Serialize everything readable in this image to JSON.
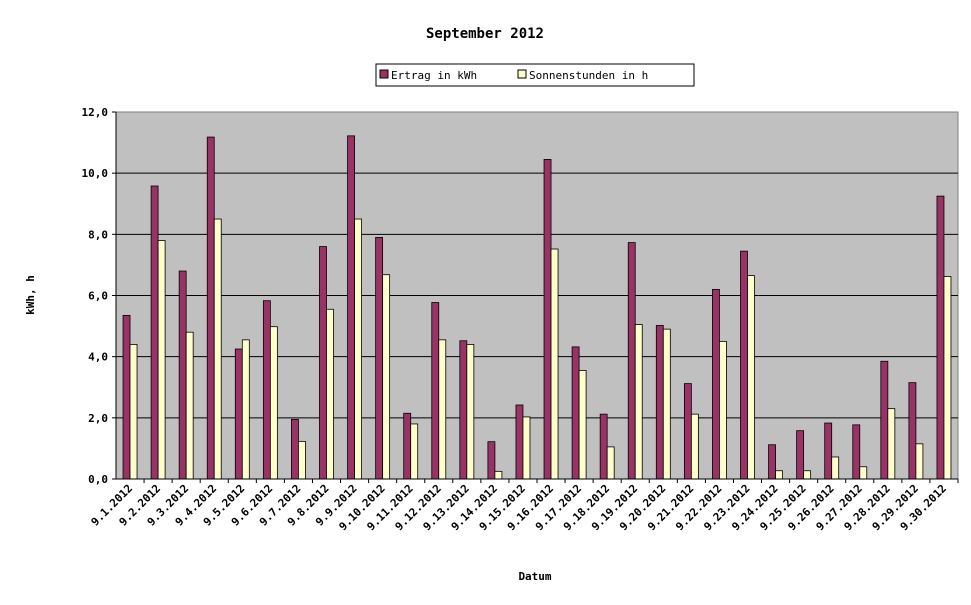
{
  "chart_data": {
    "type": "bar",
    "title": "September 2012",
    "xlabel": "Datum",
    "ylabel": "kWh, h",
    "ylim": [
      0,
      12
    ],
    "yticks": [
      "0,0",
      "2,0",
      "4,0",
      "6,0",
      "8,0",
      "10,0",
      "12,0"
    ],
    "grid": true,
    "legend_position": "top-center",
    "categories": [
      "9.1.2012",
      "9.2.2012",
      "9.3.2012",
      "9.4.2012",
      "9.5.2012",
      "9.6.2012",
      "9.7.2012",
      "9.8.2012",
      "9.9.2012",
      "9.10.2012",
      "9.11.2012",
      "9.12.2012",
      "9.13.2012",
      "9.14.2012",
      "9.15.2012",
      "9.16.2012",
      "9.17.2012",
      "9.18.2012",
      "9.19.2012",
      "9.20.2012",
      "9.21.2012",
      "9.22.2012",
      "9.23.2012",
      "9.24.2012",
      "9.25.2012",
      "9.26.2012",
      "9.27.2012",
      "9.28.2012",
      "9.29.2012",
      "9.30.2012"
    ],
    "series": [
      {
        "name": "Ertrag in kWh",
        "color": "#993366",
        "values": [
          5.35,
          9.58,
          6.8,
          11.18,
          4.25,
          5.83,
          1.95,
          7.6,
          11.22,
          7.9,
          2.15,
          5.77,
          4.52,
          1.22,
          2.42,
          10.45,
          4.32,
          2.12,
          7.73,
          5.02,
          3.12,
          6.2,
          7.45,
          1.12,
          1.58,
          1.83,
          1.77,
          3.85,
          3.15,
          9.25
        ]
      },
      {
        "name": "Sonnenstunden in h",
        "color": "#ffffcc",
        "values": [
          4.4,
          7.8,
          4.8,
          8.5,
          4.55,
          4.98,
          1.23,
          5.55,
          8.5,
          6.68,
          1.8,
          4.55,
          4.4,
          0.25,
          2.03,
          7.52,
          3.55,
          1.05,
          5.05,
          4.9,
          2.12,
          4.5,
          6.65,
          0.27,
          0.27,
          0.72,
          0.4,
          2.3,
          1.15,
          6.62
        ]
      }
    ],
    "plot_background": "#c0c0c0"
  }
}
